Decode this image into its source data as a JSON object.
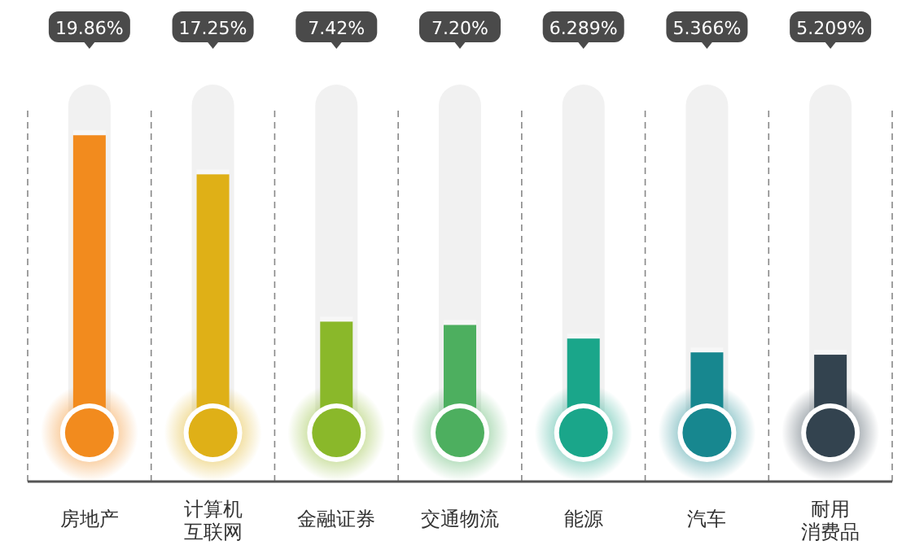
{
  "chart_data": {
    "type": "bar",
    "categories": [
      "房地产",
      "计算机互联网",
      "金融证券",
      "交通物流",
      "能源",
      "汽车",
      "耐用消费品"
    ],
    "values": [
      19.86,
      17.25,
      7.42,
      7.2,
      6.289,
      5.366,
      5.209
    ],
    "value_labels": [
      "19.86%",
      "17.25%",
      "7.42%",
      "7.20%",
      "6.289%",
      "5.366%",
      "5.209%"
    ],
    "colors": [
      "#f28b1e",
      "#dfb017",
      "#8ab82a",
      "#4daf5f",
      "#1aa68a",
      "#17878f",
      "#33434f"
    ],
    "grid": "x"
  }
}
